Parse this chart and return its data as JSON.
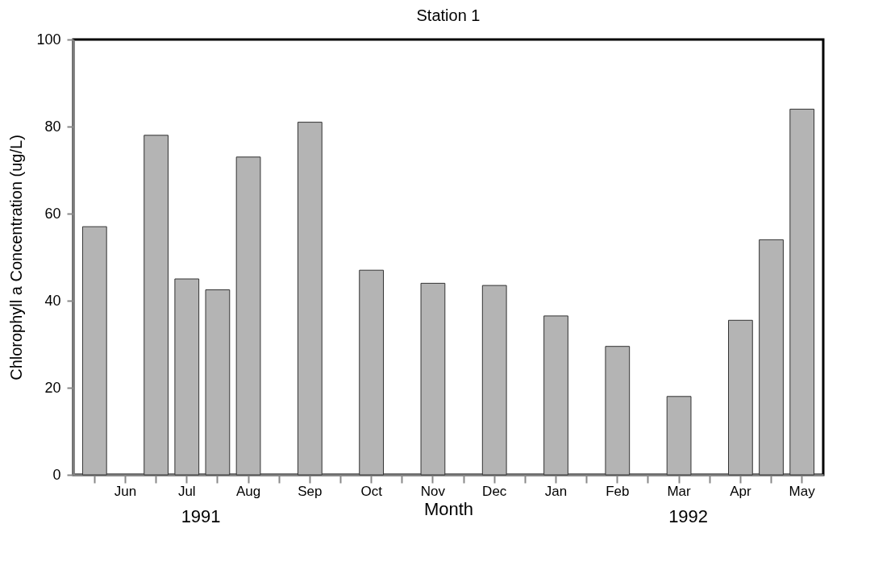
{
  "chart_data": {
    "type": "bar",
    "title": "Station 1",
    "xlabel": "Month",
    "ylabel": "Chlorophyll a Concentration (ug/L)",
    "categories": [
      null,
      "Jun",
      null,
      "Jul",
      null,
      "Aug",
      null,
      "Sep",
      null,
      "Oct",
      null,
      "Nov",
      null,
      "Dec",
      null,
      "Jan",
      null,
      "Feb",
      null,
      "Mar",
      null,
      "Apr",
      null,
      "May"
    ],
    "values": [
      57,
      null,
      78,
      45,
      42.5,
      73,
      null,
      81,
      null,
      47,
      null,
      44,
      null,
      43.5,
      null,
      36.5,
      null,
      29.5,
      null,
      18,
      null,
      35.5,
      54,
      84
    ],
    "color": "#b4b4b4",
    "ylim": [
      0,
      100
    ],
    "yticks": [
      0,
      20,
      40,
      60,
      80,
      100
    ],
    "grid": false,
    "annotations": [
      "1991",
      "1992"
    ]
  }
}
